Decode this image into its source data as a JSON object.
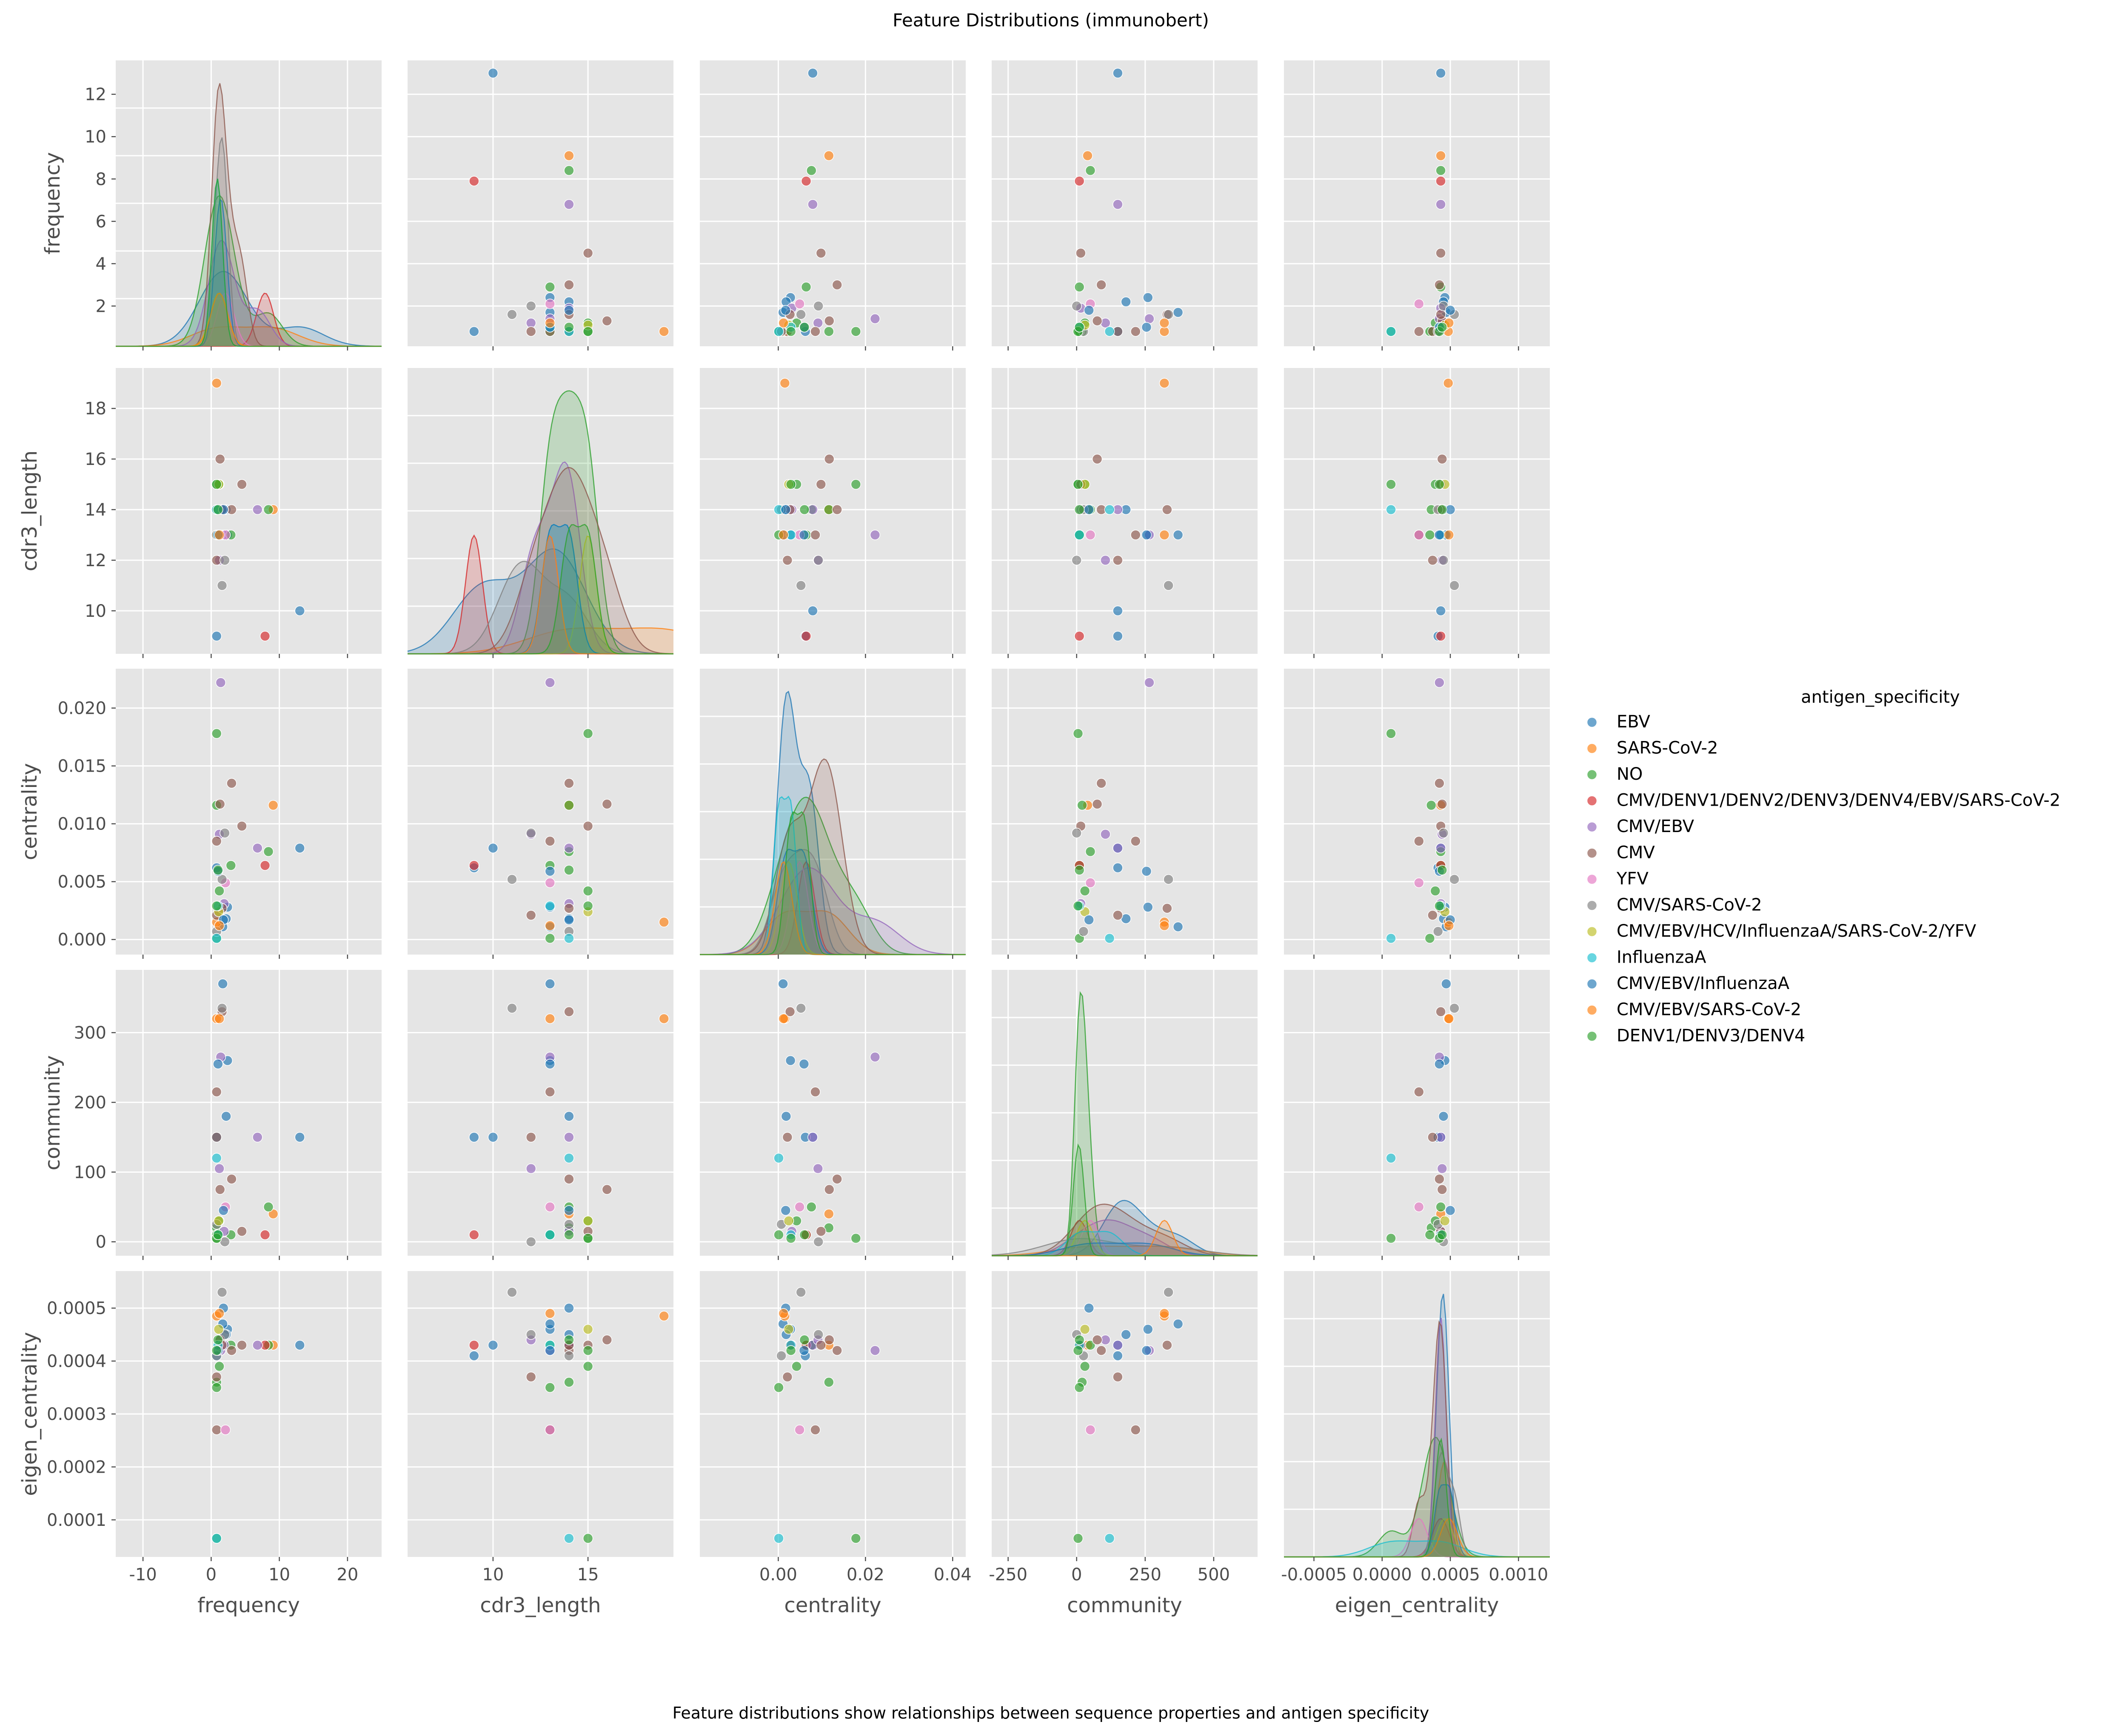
{
  "title": "Feature Distributions (immunobert)",
  "caption": "Feature distributions show relationships between sequence properties and antigen specificity",
  "chart_data": {
    "type": "scatter",
    "kind": "pairplot",
    "diagonal": "kde",
    "hue": "antigen_specificity",
    "legend_title": "antigen_specificity",
    "legend_position": "right",
    "grid": true,
    "variables": [
      "frequency",
      "cdr3_length",
      "centrality",
      "community",
      "eigen_centrality"
    ],
    "x_ticks": {
      "frequency": [
        "-10",
        "0",
        "10",
        "20"
      ],
      "cdr3_length": [
        "10",
        "15"
      ],
      "centrality": [
        "0.00",
        "0.02",
        "0.04"
      ],
      "community": [
        "-250",
        "0",
        "250",
        "500"
      ],
      "eigen_centrality": [
        "-0.0005",
        "0.0000",
        "0.0005",
        "0.0010"
      ]
    },
    "y_ticks": {
      "frequency": [
        "2",
        "4",
        "6",
        "8",
        "10",
        "12"
      ],
      "cdr3_length": [
        "10",
        "12",
        "14",
        "16",
        "18"
      ],
      "centrality": [
        "0.000",
        "0.005",
        "0.010",
        "0.015",
        "0.020"
      ],
      "community": [
        "0",
        "100",
        "200",
        "300"
      ],
      "eigen_centrality": [
        "0.0001",
        "0.0002",
        "0.0003",
        "0.0004",
        "0.0005"
      ]
    },
    "series": [
      {
        "name": "EBV",
        "color": "#1f77b4",
        "points": [
          [
            13,
            10,
            0.0079,
            150,
            0.00043
          ],
          [
            2.4,
            13,
            0.0028,
            260,
            0.00046
          ],
          [
            0.8,
            9,
            0.0062,
            150,
            0.00041
          ],
          [
            1.7,
            13,
            0.0011,
            370,
            0.00047
          ],
          [
            2.2,
            14,
            0.0018,
            180,
            0.00045
          ]
        ]
      },
      {
        "name": "SARS-CoV-2",
        "color": "#ff7f0e",
        "points": [
          [
            9.1,
            14,
            0.0116,
            40,
            0.00043
          ],
          [
            0.8,
            19,
            0.0015,
            320,
            0.000485
          ]
        ]
      },
      {
        "name": "NO",
        "color": "#2ca02c",
        "points": [
          [
            8.4,
            14,
            0.0076,
            50,
            0.00043
          ],
          [
            2.9,
            13,
            0.0064,
            10,
            0.00043
          ],
          [
            0.8,
            15,
            0.0178,
            5,
            6.5e-05
          ],
          [
            0.8,
            14,
            0.0116,
            20,
            0.00036
          ],
          [
            1.2,
            15,
            0.0042,
            30,
            0.00039
          ],
          [
            0.8,
            13,
            0.0001,
            10,
            0.00035
          ]
        ]
      },
      {
        "name": "CMV/DENV1/DENV2/DENV3/DENV4/EBV/SARS-CoV-2",
        "color": "#d62728",
        "points": [
          [
            7.9,
            9,
            0.0064,
            10,
            0.00043
          ]
        ]
      },
      {
        "name": "CMV/EBV",
        "color": "#9467bd",
        "points": [
          [
            6.8,
            14,
            0.0079,
            150,
            0.00043
          ],
          [
            1.4,
            13,
            0.0222,
            265,
            0.00042
          ],
          [
            1.2,
            12,
            0.0091,
            105,
            0.00044
          ],
          [
            1.9,
            14,
            0.0031,
            15,
            0.00043
          ]
        ]
      },
      {
        "name": "CMV",
        "color": "#8c564b",
        "points": [
          [
            4.5,
            15,
            0.0098,
            15,
            0.00043
          ],
          [
            3.0,
            14,
            0.0135,
            90,
            0.00042
          ],
          [
            1.3,
            16,
            0.0117,
            75,
            0.00044
          ],
          [
            0.8,
            12,
            0.0021,
            150,
            0.00037
          ],
          [
            1.6,
            14,
            0.0027,
            330,
            0.00043
          ],
          [
            0.8,
            13,
            0.0085,
            215,
            0.00027
          ]
        ]
      },
      {
        "name": "YFV",
        "color": "#e377c2",
        "points": [
          [
            2.1,
            13,
            0.0049,
            50,
            0.00027
          ]
        ]
      },
      {
        "name": "CMV/SARS-CoV-2",
        "color": "#7f7f7f",
        "points": [
          [
            1.6,
            11,
            0.0052,
            335,
            0.00053
          ],
          [
            2.0,
            12,
            0.0092,
            0,
            0.00045
          ],
          [
            0.8,
            14,
            0.0007,
            25,
            0.00041
          ]
        ]
      },
      {
        "name": "CMV/EBV/HCV/InfluenzaA/SARS-CoV-2/YFV",
        "color": "#bcbd22",
        "points": [
          [
            1.1,
            15,
            0.0024,
            30,
            0.00046
          ]
        ]
      },
      {
        "name": "InfluenzaA",
        "color": "#17becf",
        "points": [
          [
            0.8,
            14,
            0.0001,
            120,
            6.5e-05
          ],
          [
            1.0,
            13,
            0.0029,
            10,
            0.00043
          ]
        ]
      },
      {
        "name": "CMV/EBV/InfluenzaA",
        "color": "#1f77b4",
        "points": [
          [
            1.0,
            13,
            0.0059,
            255,
            0.00042
          ],
          [
            1.8,
            14,
            0.0017,
            45,
            0.0005
          ]
        ]
      },
      {
        "name": "CMV/EBV/SARS-CoV-2",
        "color": "#ff7f0e",
        "points": [
          [
            1.2,
            13,
            0.0012,
            320,
            0.00049
          ]
        ]
      },
      {
        "name": "DENV1/DENV3/DENV4",
        "color": "#2ca02c",
        "points": [
          [
            0.8,
            15,
            0.0029,
            5,
            0.00042
          ],
          [
            1.0,
            14,
            0.006,
            10,
            0.00044
          ]
        ]
      }
    ]
  }
}
